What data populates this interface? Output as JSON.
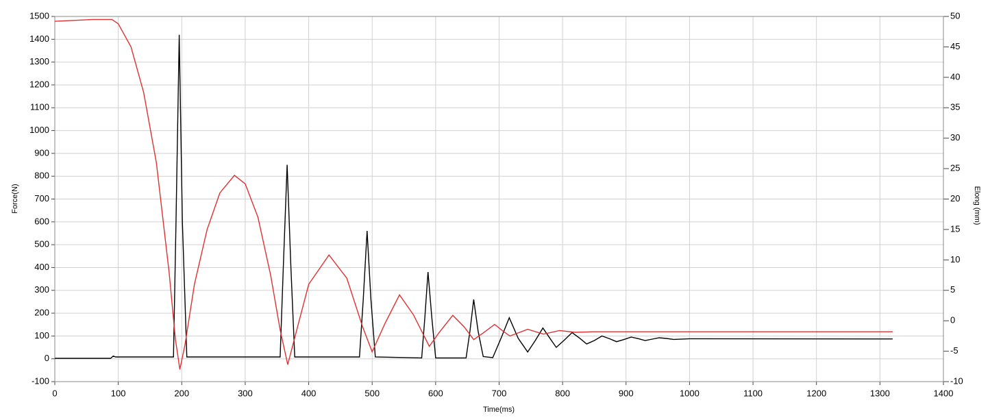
{
  "chart_data": {
    "type": "line",
    "xlabel": "Time(ms)",
    "ylabel": "Force(N)",
    "y2label": "Elong (mm)",
    "xlim": [
      0,
      1400
    ],
    "xticks": [
      0,
      100,
      200,
      300,
      400,
      500,
      600,
      700,
      800,
      900,
      1000,
      1100,
      1200,
      1300,
      1400
    ],
    "ylim": [
      -100,
      1500
    ],
    "yticks": [
      -100,
      0,
      100,
      200,
      300,
      400,
      500,
      600,
      700,
      800,
      900,
      1000,
      1100,
      1200,
      1300,
      1400,
      1500
    ],
    "y2lim": [
      -10,
      50
    ],
    "y2ticks": [
      -10,
      -5,
      0,
      5,
      10,
      15,
      20,
      25,
      30,
      35,
      40,
      45,
      50
    ],
    "grid": true,
    "series": [
      {
        "color": "#000000",
        "x": [
          0,
          88,
          92,
          96,
          100,
          187,
          191,
          196,
          201,
          208,
          355,
          360,
          366,
          372,
          378,
          480,
          486,
          492,
          498,
          505,
          578,
          583,
          588,
          594,
          600,
          648,
          654,
          660,
          667,
          675,
          690,
          703,
          716,
          730,
          745,
          757,
          769,
          780,
          790,
          802,
          815,
          827,
          838,
          850,
          862,
          874,
          885,
          897,
          908,
          920,
          930,
          941,
          952,
          964,
          975,
          1000,
          1320
        ],
        "values": [
          2,
          2,
          12,
          8,
          8,
          8,
          600,
          1420,
          600,
          8,
          8,
          400,
          850,
          400,
          8,
          8,
          260,
          560,
          260,
          8,
          4,
          180,
          380,
          180,
          4,
          4,
          120,
          260,
          120,
          10,
          5,
          90,
          180,
          90,
          30,
          80,
          135,
          90,
          50,
          80,
          115,
          90,
          65,
          80,
          100,
          88,
          75,
          85,
          95,
          88,
          80,
          86,
          92,
          89,
          85,
          88,
          87
        ]
      },
      {
        "color": "#e03030",
        "axis": "y2",
        "x": [
          0,
          60,
          90,
          100,
          120,
          140,
          160,
          180,
          190,
          197,
          205,
          220,
          240,
          260,
          283,
          300,
          320,
          340,
          355,
          367,
          380,
          400,
          432,
          460,
          485,
          500,
          520,
          543,
          565,
          590,
          605,
          627,
          645,
          660,
          675,
          693,
          705,
          717,
          730,
          745,
          770,
          795,
          820,
          850,
          1320
        ],
        "values": [
          49.2,
          49.5,
          49.5,
          48.8,
          45,
          37.5,
          26,
          8,
          -3,
          -8,
          -4,
          6,
          15,
          21,
          23.9,
          22.5,
          17,
          7.5,
          -1.5,
          -7.2,
          -2,
          6,
          10.8,
          7,
          -1,
          -5.1,
          -0.5,
          4.25,
          1,
          -4.2,
          -2,
          0.9,
          -1,
          -3.1,
          -2,
          -0.6,
          -1.6,
          -2.5,
          -2,
          -1.4,
          -2.2,
          -1.6,
          -1.9,
          -1.8,
          -1.8
        ]
      }
    ]
  }
}
